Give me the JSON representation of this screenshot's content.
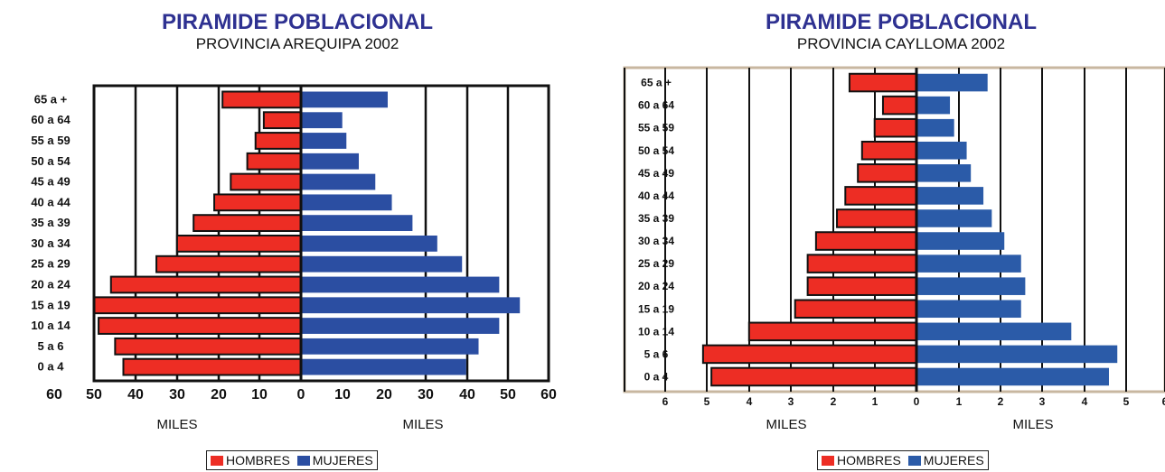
{
  "chart_data": [
    {
      "type": "bar",
      "title": "PIRAMIDE POBLACIONAL",
      "subtitle": "PROVINCIA AREQUIPA 2002",
      "categories": [
        "65 a +",
        "60 a 64",
        "55 a 59",
        "50 a 54",
        "45 a 49",
        "40 a 44",
        "35 a 39",
        "30 a 34",
        "25 a 29",
        "20 a 24",
        "15 a 19",
        "10 a 14",
        "5 a 6",
        "0 a 4"
      ],
      "series": [
        {
          "name": "HOMBRES",
          "color": "#ed2d24",
          "values": [
            19,
            9,
            11,
            13,
            17,
            21,
            26,
            30,
            35,
            46,
            50,
            49,
            45,
            43
          ]
        },
        {
          "name": "MUJERES",
          "color": "#2b4ea2",
          "values": [
            21,
            10,
            11,
            14,
            18,
            22,
            27,
            33,
            39,
            48,
            53,
            48,
            43,
            40
          ]
        }
      ],
      "x_ticks_left": [
        "60",
        "50",
        "40",
        "30",
        "20",
        "10",
        "0"
      ],
      "x_ticks_right": [
        "0",
        "10",
        "20",
        "30",
        "40",
        "50",
        "60"
      ],
      "xlabel_left": "MILES",
      "xlabel_right": "MILES",
      "xlim": [
        0,
        60
      ],
      "grid": true,
      "legend": "bottom"
    },
    {
      "type": "bar",
      "title": "PIRAMIDE POBLACIONAL",
      "subtitle": "PROVINCIA  CAYLLOMA 2002",
      "categories": [
        "65 a +",
        "60 a 64",
        "55 a 59",
        "50 a 54",
        "45 a 49",
        "40 a 44",
        "35 a 39",
        "30 a 34",
        "25 a 29",
        "20 a 24",
        "15 a 19",
        "10 a 14",
        "5 a 6",
        "0 a 4"
      ],
      "series": [
        {
          "name": "HOMBRES",
          "color": "#ed2d24",
          "values": [
            1.6,
            0.8,
            1.0,
            1.3,
            1.4,
            1.7,
            1.9,
            2.4,
            2.6,
            2.6,
            2.9,
            4.0,
            5.1,
            4.9
          ]
        },
        {
          "name": "MUJERES",
          "color": "#2b5ba8",
          "values": [
            1.7,
            0.8,
            0.9,
            1.2,
            1.3,
            1.6,
            1.8,
            2.1,
            2.5,
            2.6,
            2.5,
            3.7,
            4.8,
            4.6
          ]
        }
      ],
      "x_ticks_left": [
        "6",
        "5",
        "4",
        "3",
        "2",
        "1",
        "0"
      ],
      "x_ticks_right": [
        "0",
        "1",
        "2",
        "3",
        "4",
        "5",
        "6"
      ],
      "xlabel_left": "MILES",
      "xlabel_right": "MILES",
      "xlim": [
        0,
        6
      ],
      "grid": true,
      "legend": "bottom"
    }
  ]
}
